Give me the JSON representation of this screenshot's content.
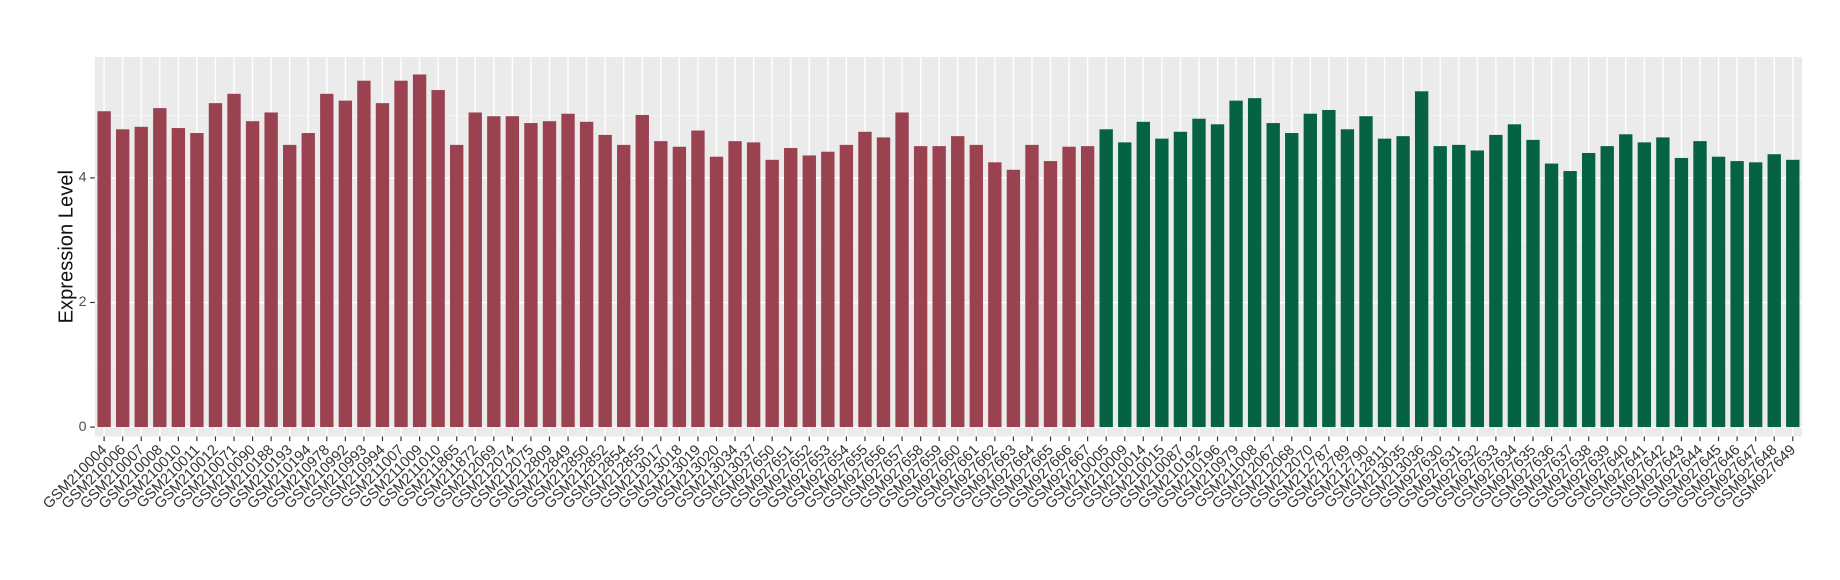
{
  "chart_data": {
    "type": "bar",
    "y_label": "Expression Level",
    "categories": [
      "GSM210004",
      "GSM210006",
      "GSM210007",
      "GSM210008",
      "GSM210010",
      "GSM210011",
      "GSM210012",
      "GSM210071",
      "GSM210090",
      "GSM210188",
      "GSM210193",
      "GSM210194",
      "GSM210978",
      "GSM210992",
      "GSM210993",
      "GSM210994",
      "GSM211007",
      "GSM211009",
      "GSM211010",
      "GSM211865",
      "GSM211872",
      "GSM212069",
      "GSM212074",
      "GSM212075",
      "GSM212809",
      "GSM212849",
      "GSM212850",
      "GSM212852",
      "GSM212854",
      "GSM212855",
      "GSM213017",
      "GSM213018",
      "GSM213019",
      "GSM213020",
      "GSM213034",
      "GSM213037",
      "GSM927650",
      "GSM927651",
      "GSM927652",
      "GSM927653",
      "GSM927654",
      "GSM927655",
      "GSM927656",
      "GSM927657",
      "GSM927658",
      "GSM927659",
      "GSM927660",
      "GSM927661",
      "GSM927662",
      "GSM927663",
      "GSM927664",
      "GSM927665",
      "GSM927666",
      "GSM927667",
      "GSM210005",
      "GSM210009",
      "GSM210014",
      "GSM210015",
      "GSM210087",
      "GSM210192",
      "GSM210196",
      "GSM210979",
      "GSM211008",
      "GSM212067",
      "GSM212068",
      "GSM212070",
      "GSM212787",
      "GSM212789",
      "GSM212790",
      "GSM212811",
      "GSM213035",
      "GSM213036",
      "GSM927630",
      "GSM927631",
      "GSM927632",
      "GSM927633",
      "GSM927634",
      "GSM927635",
      "GSM927636",
      "GSM927637",
      "GSM927638",
      "GSM927639",
      "GSM927640",
      "GSM927641",
      "GSM927642",
      "GSM927643",
      "GSM927644",
      "GSM927645",
      "GSM927646",
      "GSM927647",
      "GSM927648",
      "GSM927649"
    ],
    "values": [
      5.07,
      4.78,
      4.82,
      5.12,
      4.8,
      4.72,
      5.2,
      5.35,
      4.91,
      5.05,
      4.53,
      4.72,
      5.35,
      5.24,
      5.56,
      5.2,
      5.56,
      5.66,
      5.41,
      4.53,
      5.05,
      4.99,
      4.99,
      4.88,
      4.91,
      5.03,
      4.9,
      4.69,
      4.53,
      5.01,
      4.59,
      4.5,
      4.76,
      4.34,
      4.59,
      4.57,
      4.29,
      4.48,
      4.36,
      4.42,
      4.53,
      4.74,
      4.65,
      5.05,
      4.51,
      4.51,
      4.67,
      4.53,
      4.25,
      4.13,
      4.53,
      4.27,
      4.5,
      4.51,
      4.78,
      4.57,
      4.9,
      4.63,
      4.74,
      4.95,
      4.86,
      5.24,
      5.28,
      4.88,
      4.72,
      5.03,
      5.09,
      4.78,
      4.99,
      4.63,
      4.67,
      5.39,
      4.51,
      4.53,
      4.44,
      4.69,
      4.86,
      4.61,
      4.23,
      4.11,
      4.4,
      4.51,
      4.7,
      4.57,
      4.65,
      4.32,
      4.59,
      4.34,
      4.27,
      4.25,
      4.38,
      4.29
    ],
    "colors": [
      "#9b4250",
      "#9b4250",
      "#9b4250",
      "#9b4250",
      "#9b4250",
      "#9b4250",
      "#9b4250",
      "#9b4250",
      "#9b4250",
      "#9b4250",
      "#9b4250",
      "#9b4250",
      "#9b4250",
      "#9b4250",
      "#9b4250",
      "#9b4250",
      "#9b4250",
      "#9b4250",
      "#9b4250",
      "#9b4250",
      "#9b4250",
      "#9b4250",
      "#9b4250",
      "#9b4250",
      "#9b4250",
      "#9b4250",
      "#9b4250",
      "#9b4250",
      "#9b4250",
      "#9b4250",
      "#9b4250",
      "#9b4250",
      "#9b4250",
      "#9b4250",
      "#9b4250",
      "#9b4250",
      "#9b4250",
      "#9b4250",
      "#9b4250",
      "#9b4250",
      "#9b4250",
      "#9b4250",
      "#9b4250",
      "#9b4250",
      "#9b4250",
      "#9b4250",
      "#9b4250",
      "#9b4250",
      "#9b4250",
      "#9b4250",
      "#9b4250",
      "#9b4250",
      "#9b4250",
      "#9b4250",
      "#056343",
      "#056343",
      "#056343",
      "#056343",
      "#056343",
      "#056343",
      "#056343",
      "#056343",
      "#056343",
      "#056343",
      "#056343",
      "#056343",
      "#056343",
      "#056343",
      "#056343",
      "#056343",
      "#056343",
      "#056343",
      "#056343",
      "#056343",
      "#056343",
      "#056343",
      "#056343",
      "#056343",
      "#056343",
      "#056343",
      "#056343",
      "#056343",
      "#056343",
      "#056343",
      "#056343",
      "#056343",
      "#056343",
      "#056343",
      "#056343",
      "#056343",
      "#056343",
      "#056343"
    ],
    "ylim": [
      -0.15,
      5.94
    ],
    "yticks": [
      0,
      2,
      4
    ],
    "minor_yticks": [
      1,
      3,
      5
    ],
    "grid": true
  }
}
